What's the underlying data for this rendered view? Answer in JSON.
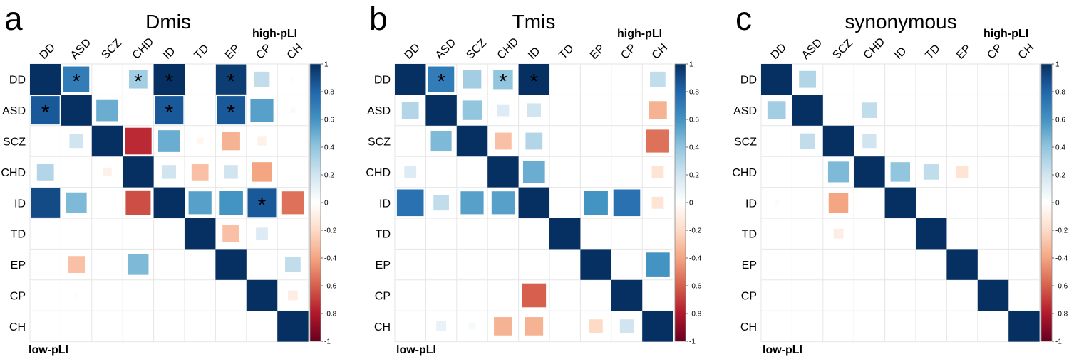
{
  "figure": {
    "label_high": "high-pLI",
    "label_low": "low-pLI",
    "colorbar_ticks": [
      "1",
      "0.8",
      "0.6",
      "0.4",
      "0.2",
      "0",
      "-0.2",
      "-0.4",
      "-0.6",
      "-0.8",
      "-1"
    ],
    "colorbar_values": [
      1,
      0.8,
      0.6,
      0.4,
      0.2,
      0,
      -0.2,
      -0.4,
      -0.6,
      -0.8,
      -1
    ],
    "colorscale": {
      "low": "#67001f",
      "mid": "#ffffff",
      "high": "#053061"
    }
  },
  "chart_data": [
    {
      "type": "heatmap",
      "panel_letter": "a",
      "title": "Dmis",
      "row_labels": [
        "DD",
        "ASD",
        "SCZ",
        "CHD",
        "ID",
        "TD",
        "EP",
        "CP",
        "CH"
      ],
      "col_labels": [
        "DD",
        "ASD",
        "SCZ",
        "CHD",
        "ID",
        "TD",
        "EP",
        "CP",
        "CH"
      ],
      "value_range": [
        -1,
        1
      ],
      "values": [
        [
          1,
          0.7,
          0,
          0.35,
          1,
          0,
          0.95,
          0.25,
          0.02
        ],
        [
          0.85,
          1,
          0.5,
          0.01,
          0.85,
          0,
          0.85,
          0.55,
          0.03
        ],
        [
          0,
          0.2,
          1,
          -0.75,
          0.5,
          -0.05,
          -0.35,
          -0.08,
          0
        ],
        [
          0.3,
          0.01,
          -0.08,
          1,
          0.2,
          -0.3,
          0.2,
          -0.4,
          0
        ],
        [
          0.9,
          0.45,
          0,
          -0.65,
          1,
          0.55,
          0.6,
          0.85,
          -0.55
        ],
        [
          0,
          0.01,
          0,
          0,
          0,
          1,
          -0.3,
          0.15,
          0
        ],
        [
          0,
          -0.3,
          0,
          0.45,
          0,
          0,
          1,
          0.01,
          0.25
        ],
        [
          0,
          0.02,
          0,
          0,
          0,
          0,
          0,
          1,
          -0.1
        ],
        [
          0,
          0,
          0,
          0,
          0,
          0,
          0,
          0,
          1
        ]
      ],
      "significant": [
        [
          0,
          1
        ],
        [
          0,
          3
        ],
        [
          0,
          4
        ],
        [
          0,
          6
        ],
        [
          1,
          0
        ],
        [
          1,
          4
        ],
        [
          1,
          6
        ],
        [
          4,
          7
        ]
      ]
    },
    {
      "type": "heatmap",
      "panel_letter": "b",
      "title": "Tmis",
      "row_labels": [
        "DD",
        "ASD",
        "SCZ",
        "CHD",
        "ID",
        "TD",
        "EP",
        "CP",
        "CH"
      ],
      "col_labels": [
        "DD",
        "ASD",
        "SCZ",
        "CHD",
        "ID",
        "TD",
        "EP",
        "CP",
        "CH"
      ],
      "value_range": [
        -1,
        1
      ],
      "values": [
        [
          1,
          0.7,
          0.35,
          0.4,
          1,
          0,
          0,
          0.01,
          0.25
        ],
        [
          0.3,
          1,
          0.4,
          0.15,
          0.2,
          0,
          0,
          0.01,
          -0.35
        ],
        [
          0,
          0.45,
          1,
          -0.3,
          0.3,
          0,
          0,
          0,
          -0.55
        ],
        [
          0.15,
          0,
          0,
          1,
          0.5,
          0,
          0,
          0,
          -0.15
        ],
        [
          0.75,
          0.25,
          0.55,
          0.55,
          1,
          0,
          0.6,
          0.75,
          -0.15
        ],
        [
          0,
          0,
          0,
          0,
          0,
          1,
          0,
          0,
          0
        ],
        [
          0,
          0,
          0,
          0,
          0,
          0,
          1,
          0,
          0.6
        ],
        [
          0,
          0.01,
          0,
          0,
          -0.6,
          0,
          0,
          1,
          0.01
        ],
        [
          0,
          0.1,
          0.05,
          -0.35,
          -0.35,
          0,
          -0.2,
          0.2,
          1
        ]
      ],
      "significant": [
        [
          0,
          1
        ],
        [
          0,
          3
        ],
        [
          0,
          4
        ]
      ]
    },
    {
      "type": "heatmap",
      "panel_letter": "c",
      "title": "synonymous",
      "row_labels": [
        "DD",
        "ASD",
        "SCZ",
        "CHD",
        "ID",
        "TD",
        "EP",
        "CP",
        "CH"
      ],
      "col_labels": [
        "DD",
        "ASD",
        "SCZ",
        "CHD",
        "ID",
        "TD",
        "EP",
        "CP",
        "CH"
      ],
      "value_range": [
        -1,
        1
      ],
      "values": [
        [
          1,
          0.3,
          0,
          0,
          0,
          0,
          0,
          0,
          0
        ],
        [
          0.35,
          1,
          0,
          0.25,
          0,
          0,
          0,
          0,
          0
        ],
        [
          0,
          0.25,
          1,
          0.2,
          0,
          0,
          0,
          0,
          0
        ],
        [
          0,
          0,
          0.45,
          1,
          0.4,
          0.25,
          -0.15,
          0,
          0
        ],
        [
          0.02,
          0,
          -0.4,
          0,
          1,
          0,
          0,
          0,
          0
        ],
        [
          0,
          0,
          -0.1,
          0,
          0,
          1,
          0,
          0,
          0
        ],
        [
          0,
          0,
          0,
          0,
          0,
          0,
          1,
          0.01,
          0
        ],
        [
          0,
          0,
          0,
          0,
          0,
          0,
          0,
          1,
          0
        ],
        [
          0,
          0,
          0.01,
          0,
          0,
          0,
          0,
          0,
          1
        ]
      ],
      "significant": []
    }
  ]
}
